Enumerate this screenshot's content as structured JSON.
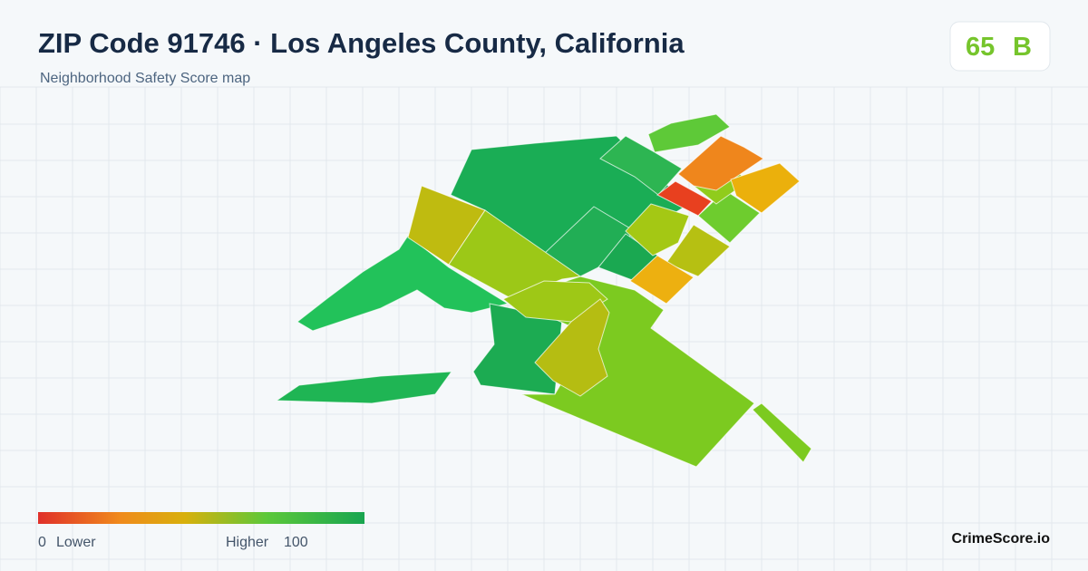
{
  "header": {
    "title": "ZIP Code 91746 · Los Angeles County, California",
    "subtitle": "Neighborhood Safety Score map"
  },
  "score": {
    "value": 65,
    "grade": "B"
  },
  "legend": {
    "min": 0,
    "min_label": "Lower",
    "max_label": "Higher",
    "max": 100
  },
  "brand": "CrimeScore.io"
}
